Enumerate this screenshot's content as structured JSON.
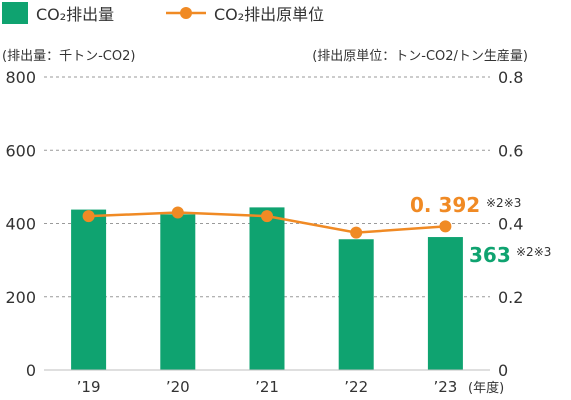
{
  "chart_data": {
    "type": "bar+line",
    "categories": [
      "’19",
      "’20",
      "’21",
      "’22",
      "’23"
    ],
    "x_unit_label": "(年度)",
    "series": [
      {
        "name": "CO₂排出量",
        "type": "bar",
        "axis": "left",
        "color": "#0fa370",
        "values": [
          438,
          425,
          444,
          357,
          363
        ]
      },
      {
        "name": "CO₂排出原単位",
        "type": "line",
        "axis": "right",
        "color": "#f08a24",
        "values": [
          0.42,
          0.43,
          0.42,
          0.375,
          0.392
        ]
      }
    ],
    "left_axis": {
      "label": "(排出量：千トン-CO2)",
      "ylim": [
        0,
        800
      ],
      "ticks": [
        "0",
        "200",
        "400",
        "600",
        "800"
      ]
    },
    "right_axis": {
      "label": "(排出原単位：トン-CO2/トン生産量)",
      "ylim": [
        0,
        0.8
      ],
      "ticks": [
        "0",
        "0.2",
        "0.4",
        "0.6",
        "0.8"
      ]
    },
    "grid": true,
    "legend_position": "top-left",
    "annotations": {
      "line_last_value": "0. 392",
      "line_last_note": "※2※3",
      "bar_last_value": "363",
      "bar_last_note": "※2※3"
    }
  }
}
